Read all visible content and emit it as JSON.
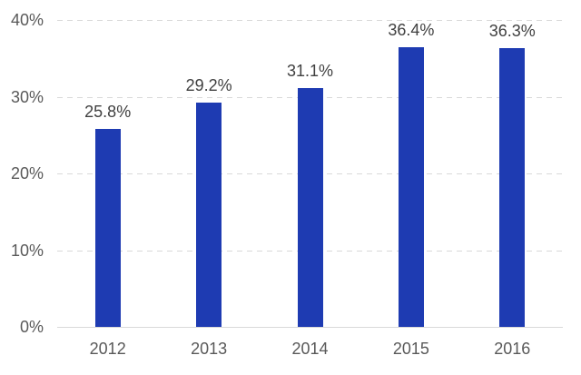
{
  "chart_data": {
    "type": "bar",
    "title": "",
    "xlabel": "",
    "ylabel": "",
    "categories": [
      "2012",
      "2013",
      "2014",
      "2015",
      "2016"
    ],
    "values": [
      25.8,
      29.2,
      31.1,
      36.4,
      36.3
    ],
    "data_labels": [
      "25.8%",
      "29.2%",
      "31.1%",
      "36.4%",
      "36.3%"
    ],
    "ylim": [
      0,
      40
    ],
    "yticks": [
      {
        "value": 40,
        "label": "40%"
      },
      {
        "value": 30,
        "label": "30%"
      },
      {
        "value": 20,
        "label": "20%"
      },
      {
        "value": 10,
        "label": "10%"
      },
      {
        "value": 0,
        "label": "0%"
      }
    ],
    "legend": "none",
    "grid": "horizontal-dashed",
    "colors": {
      "bar": "#1E3BB2",
      "gridline": "#D9D9D9",
      "axis_line": "#D9D9D9",
      "tick_label": "#595959",
      "data_label": "#404040",
      "background": "#FFFFFF"
    }
  }
}
